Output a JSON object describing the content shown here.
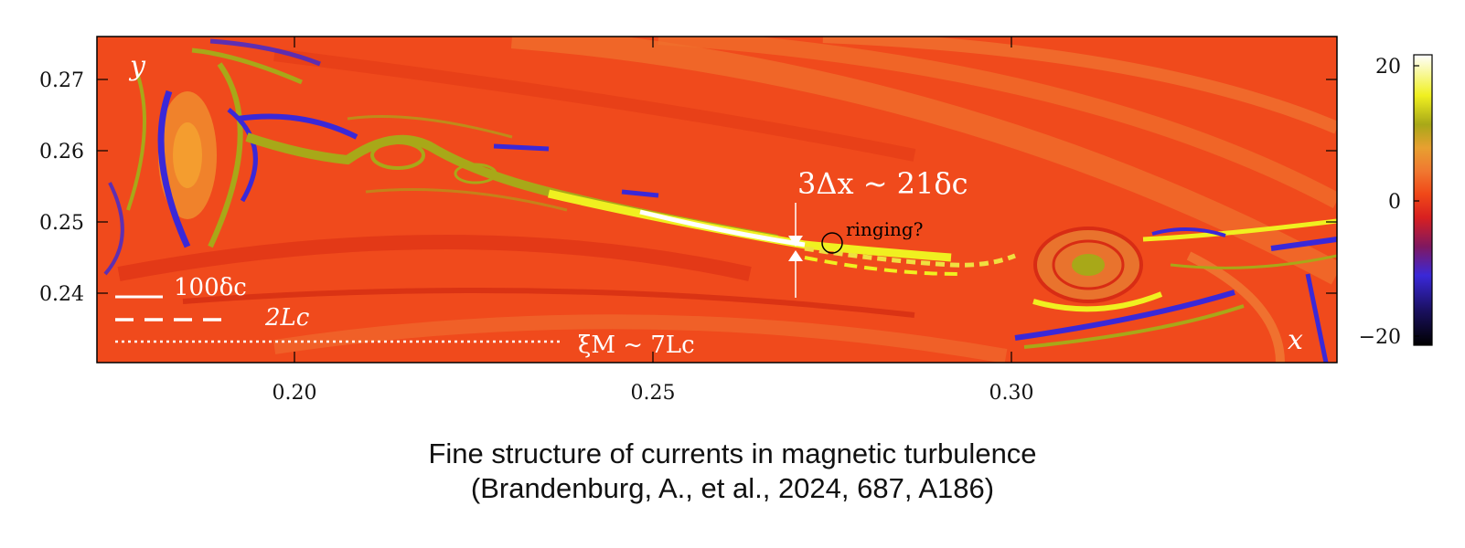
{
  "figure": {
    "panel_labels": {
      "y": "y",
      "x": "x"
    },
    "x_ticks": [
      "0.20",
      "0.25",
      "0.30"
    ],
    "y_ticks": [
      "0.27",
      "0.26",
      "0.25",
      "0.24"
    ],
    "colorbar_ticks": [
      "20",
      "0",
      "−20"
    ],
    "annotations": {
      "resolution": "3Δx ~ 21δc",
      "ringing": "ringing?",
      "scale_solid": "100δc",
      "scale_dashed": "2Lc",
      "scale_dotted": "ξM ~ 7Lc"
    }
  },
  "caption": {
    "line1": "Fine structure of currents in magnetic turbulence",
    "line2": "(Brandenburg, A., et al., 2024, 687, A186)"
  }
}
